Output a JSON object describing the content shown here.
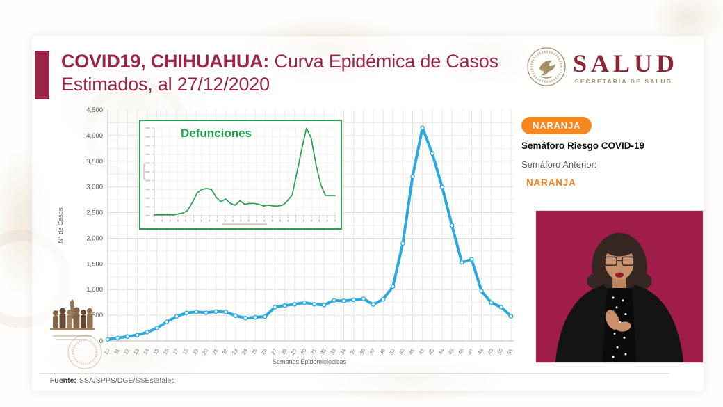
{
  "slide": {
    "title_bold": "COVID19, CHIHUAHUA:",
    "title_rest": " Curva Epidémica de Casos Estimados, al 27/12/2020",
    "source_label": "Fuente:",
    "source_text": "SSA/SPPS/DGE/SSEstatales"
  },
  "logo": {
    "wordmark": "SALUD",
    "subtitle": "SECRETARÍA DE SALUD",
    "seal": "mexican-eagle-seal"
  },
  "semaforo": {
    "current_badge": "NARANJA",
    "risk_title": "Semáforo Riesgo COVID-19",
    "previous_label": "Semáforo Anterior:",
    "previous_value": "NARANJA"
  },
  "interpreter": {
    "description": "sign-language-interpreter-video-inset",
    "background_color": "#A01C4B"
  },
  "colors": {
    "title_maroon": "#9D2449",
    "badge_orange": "#F6871F",
    "previous_orange": "#F58220",
    "case_line_blue": "#2AA9E0",
    "deaths_line_green": "#2E9E50",
    "logo_maroon": "#8A2638",
    "logo_tan": "#A8906A",
    "grid_gray": "#E7E5E1"
  },
  "chart_data": [
    {
      "type": "line",
      "name": "casos-estimados",
      "xlabel": "Semanas Epidemiológicas",
      "ylabel": "N° de Casos",
      "ylim": [
        0,
        4500
      ],
      "ytick_step": 500,
      "grid": true,
      "legend_position": "none",
      "x": [
        10,
        11,
        12,
        13,
        14,
        15,
        16,
        17,
        18,
        19,
        20,
        21,
        22,
        23,
        24,
        25,
        26,
        27,
        28,
        29,
        30,
        31,
        32,
        33,
        34,
        35,
        36,
        37,
        38,
        39,
        40,
        41,
        42,
        43,
        44,
        45,
        46,
        47,
        48,
        49,
        50,
        51
      ],
      "series": [
        {
          "name": "Casos estimados",
          "color": "#2AA9E0",
          "values": [
            30,
            55,
            85,
            115,
            170,
            250,
            370,
            480,
            545,
            565,
            550,
            570,
            565,
            490,
            445,
            460,
            475,
            660,
            690,
            715,
            745,
            715,
            700,
            790,
            780,
            800,
            820,
            710,
            810,
            1060,
            1900,
            3200,
            4150,
            3650,
            3000,
            2250,
            1530,
            1590,
            970,
            745,
            660,
            480
          ]
        }
      ]
    },
    {
      "type": "line",
      "name": "defunciones-inset",
      "title": "Defunciones",
      "color": "#2E9E50",
      "axis_labels": "illegible-at-this-resolution",
      "y_scale": "relative 0-100 (peak = 100)",
      "values": [
        1,
        1,
        1,
        1,
        1,
        2,
        3,
        6,
        15,
        26,
        30,
        31,
        30,
        21,
        16,
        19,
        14,
        12,
        17,
        13,
        14,
        14,
        13,
        11,
        12,
        11,
        11,
        12,
        17,
        24,
        50,
        76,
        100,
        88,
        58,
        35,
        23,
        23,
        23
      ]
    }
  ]
}
